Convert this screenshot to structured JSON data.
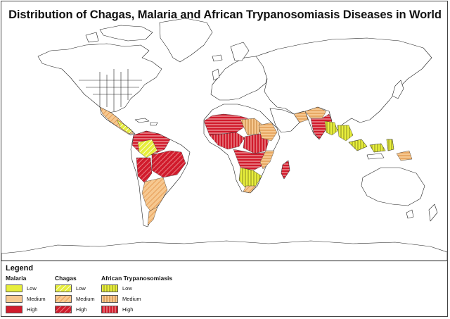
{
  "title": "Distribution of Chagas, Malaria and African Trypanosomiasis Diseases in World",
  "colors": {
    "low": "#e7ee3c",
    "medium": "#f6c890",
    "high": "#d11b2c",
    "land": "#ffffff",
    "border": "#222222",
    "ocean": "#ffffff"
  },
  "legend": {
    "title": "Legend",
    "groups": [
      {
        "name": "Malaria",
        "pattern": "solid",
        "items": [
          "Low",
          "Medium",
          "High"
        ]
      },
      {
        "name": "Chagas",
        "pattern": "diagonal",
        "items": [
          "Low",
          "Medium",
          "High"
        ]
      },
      {
        "name": "African Trypanosomiasis",
        "pattern": "vertical",
        "items": [
          "Low",
          "Medium",
          "High"
        ]
      }
    ]
  }
}
